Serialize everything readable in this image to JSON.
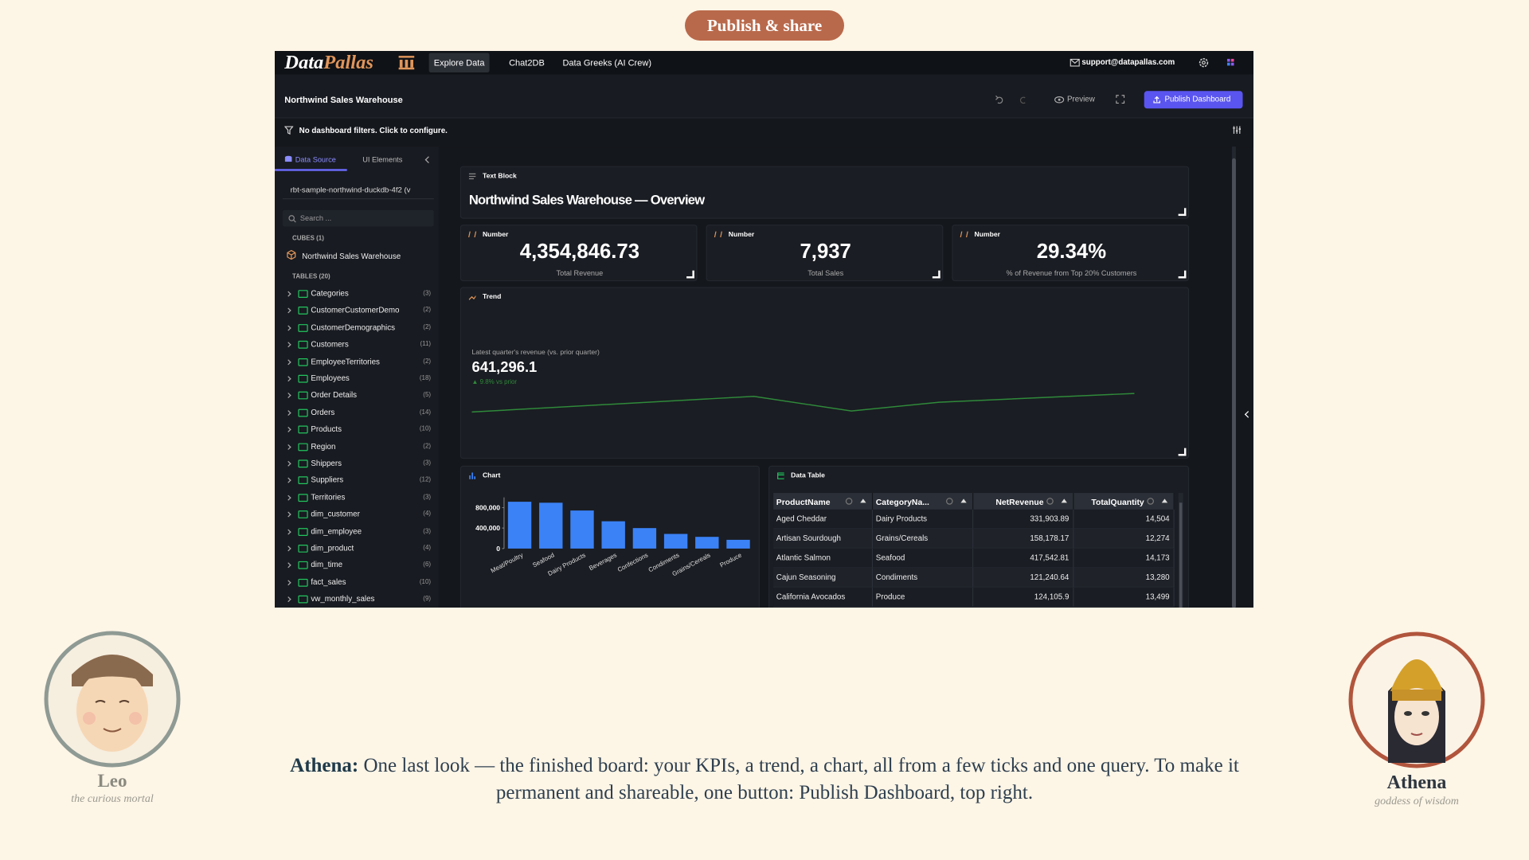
{
  "header": {
    "button": "Publish & share"
  },
  "dashboard": {
    "logo": {
      "first": "Data",
      "second": "Pallas"
    },
    "nav": [
      "Explore Data",
      "Chat2DB",
      "Data Greeks (AI Crew)"
    ],
    "support": "support@datapallas.com",
    "title": "Northwind Sales Warehouse",
    "preview": "Preview",
    "publish": "Publish Dashboard",
    "filters": "No dashboard filters. Click to configure.",
    "sidebar": {
      "tabs": [
        "Data Source",
        "UI Elements"
      ],
      "source": "rbt-sample-northwind-duckdb-4f2 (v",
      "search": "Search ...",
      "cubes_label": "CUBES (1)",
      "cube": "Northwind Sales Warehouse",
      "tables_label": "TABLES (20)",
      "tables": [
        {
          "name": "Categories",
          "count": "(3)"
        },
        {
          "name": "CustomerCustomerDemo",
          "count": "(2)"
        },
        {
          "name": "CustomerDemographics",
          "count": "(2)"
        },
        {
          "name": "Customers",
          "count": "(11)"
        },
        {
          "name": "EmployeeTerritories",
          "count": "(2)"
        },
        {
          "name": "Employees",
          "count": "(18)"
        },
        {
          "name": "Order Details",
          "count": "(5)"
        },
        {
          "name": "Orders",
          "count": "(14)"
        },
        {
          "name": "Products",
          "count": "(10)"
        },
        {
          "name": "Region",
          "count": "(2)"
        },
        {
          "name": "Shippers",
          "count": "(3)"
        },
        {
          "name": "Suppliers",
          "count": "(12)"
        },
        {
          "name": "Territories",
          "count": "(3)"
        },
        {
          "name": "dim_customer",
          "count": "(4)"
        },
        {
          "name": "dim_employee",
          "count": "(3)"
        },
        {
          "name": "dim_product",
          "count": "(4)"
        },
        {
          "name": "dim_time",
          "count": "(6)"
        },
        {
          "name": "fact_sales",
          "count": "(10)"
        },
        {
          "name": "vw_monthly_sales",
          "count": "(9)"
        }
      ]
    },
    "text_block": {
      "label": "Text Block",
      "title": "Northwind Sales Warehouse — Overview"
    },
    "kpis": [
      {
        "label": "Number",
        "value": "4,354,846.73",
        "caption": "Total Revenue"
      },
      {
        "label": "Number",
        "value": "7,937",
        "caption": "Total Sales"
      },
      {
        "label": "Number",
        "value": "29.34%",
        "caption": "% of Revenue from Top 20% Customers"
      }
    ],
    "trend": {
      "label": "Trend",
      "caption": "Latest quarter's revenue (vs. prior quarter)",
      "value": "641,296.1",
      "delta": "▲ 9.8% vs prior"
    },
    "chart_label": "Chart",
    "table": {
      "label": "Data Table",
      "columns": [
        "ProductName",
        "CategoryNa...",
        "NetRevenue",
        "TotalQuantity"
      ],
      "rows": [
        [
          "Aged Cheddar",
          "Dairy Products",
          "331,903.89",
          "14,504"
        ],
        [
          "Artisan Sourdough",
          "Grains/Cereals",
          "158,178.17",
          "12,274"
        ],
        [
          "Atlantic Salmon",
          "Seafood",
          "417,542.81",
          "14,173"
        ],
        [
          "Cajun Seasoning",
          "Condiments",
          "121,240.64",
          "13,280"
        ],
        [
          "California Avocados",
          "Produce",
          "124,105.9",
          "13,499"
        ]
      ]
    }
  },
  "chart_data": {
    "type": "bar",
    "categories": [
      "Meat/Poultry",
      "Seafood",
      "Dairy Products",
      "Beverages",
      "Confections",
      "Condiments",
      "Grains/Cereals",
      "Produce"
    ],
    "values": [
      914000,
      895000,
      743000,
      533000,
      400000,
      286000,
      229000,
      171000
    ],
    "color": "#3b82f6",
    "ylim": [
      0,
      1000000
    ],
    "yticks": [
      0,
      {
        "value": 400000,
        "label": "400,000"
      },
      {
        "value": 800000,
        "label": "800,000"
      }
    ],
    "grid": false
  },
  "caption": {
    "speaker": "Athena:",
    "text": "One last look — the finished board: your KPIs, a trend, a chart, all from a few ticks and one query. To make it permanent and shareable, one button: Publish Dashboard, top right."
  },
  "characters": [
    {
      "name": "Leo",
      "role": "the curious mortal"
    },
    {
      "name": "Athena",
      "role": "goddess of wisdom"
    }
  ]
}
